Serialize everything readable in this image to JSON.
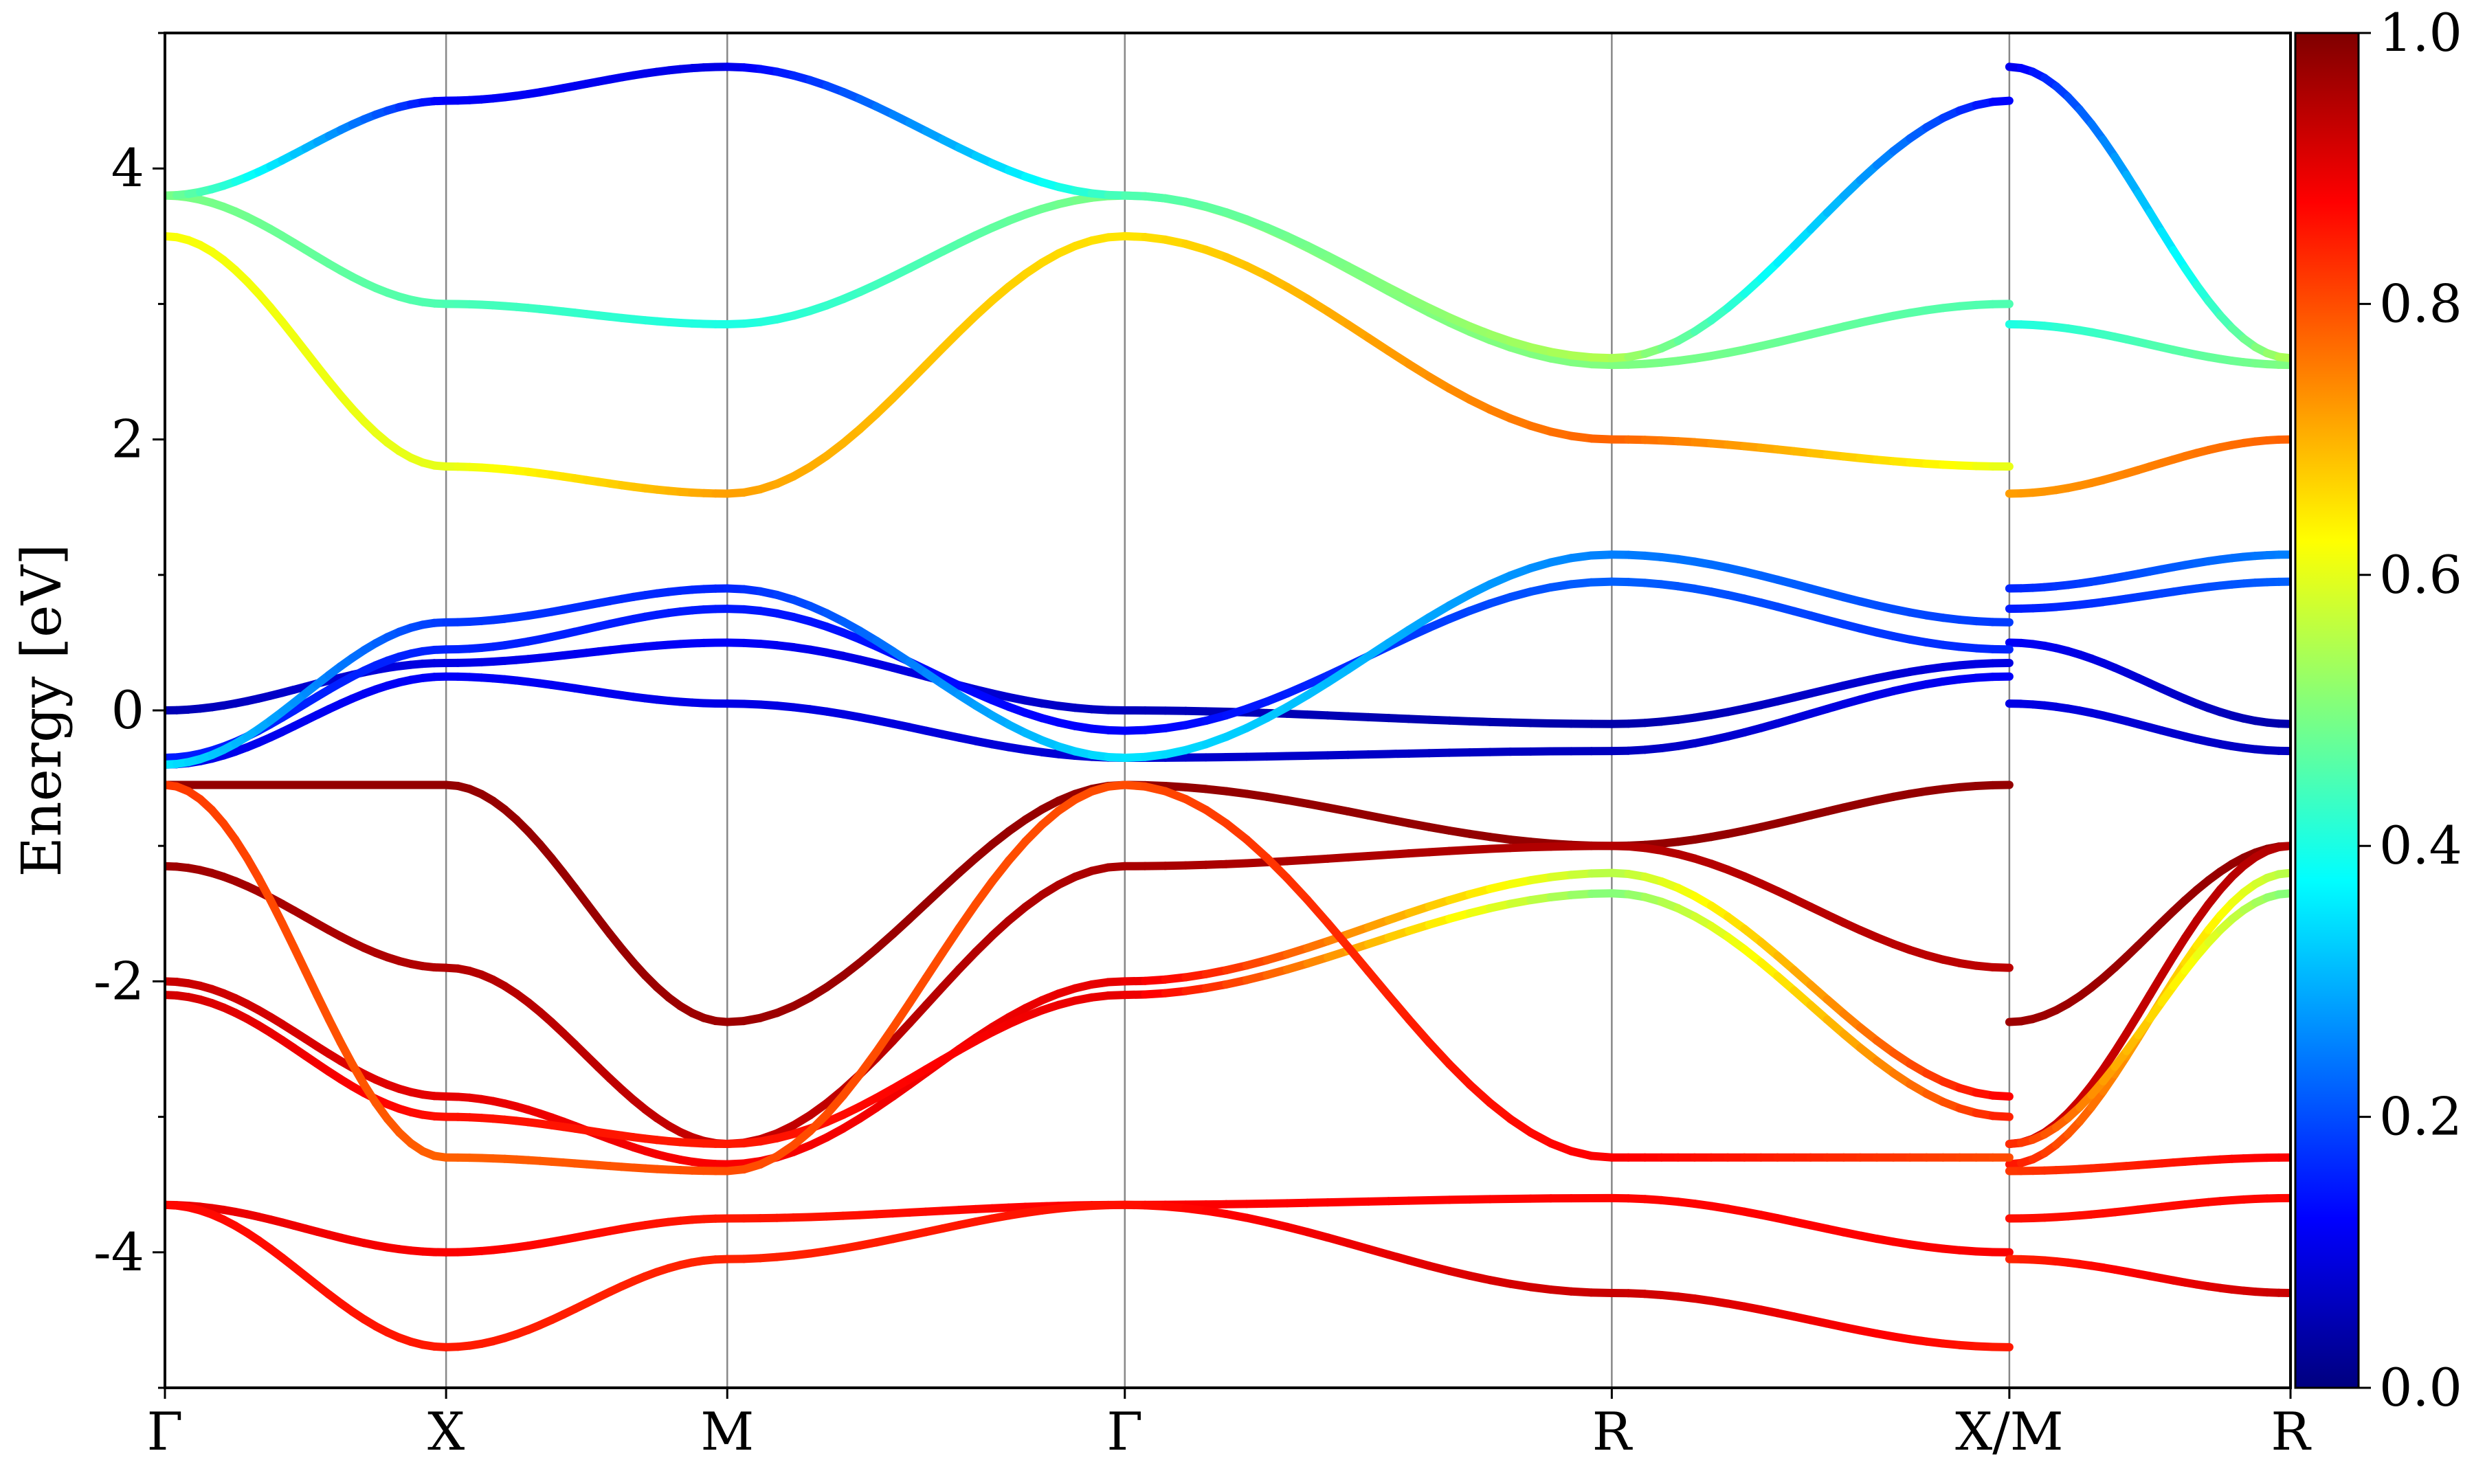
{
  "chart_data": {
    "type": "line",
    "title": "",
    "xlabel": "",
    "ylabel": "Energy [eV]",
    "ylim": [
      -5,
      5
    ],
    "y_ticks": [
      -4,
      -2,
      0,
      2,
      4
    ],
    "y_tick_labels": [
      "-4",
      "-2",
      "0",
      "2",
      "4"
    ],
    "k_points": [
      "Γ",
      "X",
      "M",
      "Γ",
      "R",
      "X/M",
      "R"
    ],
    "k_positions": [
      0,
      0.5,
      1.0,
      1.707,
      2.573,
      3.28,
      3.78
    ],
    "grid": false,
    "legend": "none",
    "colorbar": {
      "colormap": "jet",
      "range": [
        0.0,
        1.0
      ],
      "ticks": [
        0.0,
        0.2,
        0.4,
        0.6,
        0.8,
        1.0
      ],
      "tick_labels": [
        "0.0",
        "0.2",
        "0.4",
        "0.6",
        "0.8",
        "1.0"
      ],
      "colors": [
        "#00007f",
        "#0000ff",
        "#007fff",
        "#00ffff",
        "#7fff7f",
        "#ffff00",
        "#ff7f00",
        "#ff0000",
        "#7f0000"
      ]
    },
    "series": [
      {
        "k": [
          0,
          0.5,
          1.0,
          1.707,
          2.573,
          3.28,
          3.28,
          3.78
        ],
        "energy": [
          -0.55,
          -0.55,
          -2.3,
          -0.55,
          -1.0,
          -0.55,
          -2.3,
          -1.0
        ],
        "weight": [
          0.98,
          0.98,
          0.97,
          0.98,
          0.98,
          0.98,
          0.97,
          0.98
        ]
      },
      {
        "k": [
          0,
          0.5,
          1.0,
          1.707,
          2.573,
          3.28,
          3.28,
          3.78
        ],
        "energy": [
          -1.15,
          -1.9,
          -3.2,
          -1.15,
          -1.0,
          -1.9,
          -3.2,
          -1.0
        ],
        "weight": [
          0.97,
          0.95,
          0.93,
          0.96,
          0.95,
          0.94,
          0.92,
          0.95
        ]
      },
      {
        "k": [
          0,
          0.5,
          1.0,
          1.707,
          2.573,
          3.28,
          3.28,
          3.78
        ],
        "energy": [
          -2.0,
          -2.85,
          -3.35,
          -2.0,
          -1.2,
          -2.85,
          -3.35,
          -1.2
        ],
        "weight": [
          0.93,
          0.9,
          0.88,
          0.9,
          0.55,
          0.88,
          0.86,
          0.55
        ]
      },
      {
        "k": [
          0,
          0.5,
          1.0,
          1.707,
          2.573,
          3.28,
          3.28,
          3.78
        ],
        "energy": [
          -2.1,
          -3.0,
          -3.2,
          -2.1,
          -1.35,
          -3.0,
          -3.2,
          -1.35
        ],
        "weight": [
          0.92,
          0.86,
          0.85,
          0.9,
          0.5,
          0.85,
          0.84,
          0.5
        ]
      },
      {
        "k": [
          0,
          0.5,
          1.0,
          1.707,
          2.573,
          3.28,
          3.28,
          3.78
        ],
        "energy": [
          -0.55,
          -3.3,
          -3.4,
          -0.55,
          -3.3,
          -3.3,
          -3.4,
          -3.3
        ],
        "weight": [
          0.82,
          0.78,
          0.8,
          0.8,
          0.88,
          0.8,
          0.82,
          0.88
        ]
      },
      {
        "k": [
          0,
          0.5,
          1.0,
          1.707,
          2.573,
          3.28,
          3.28,
          3.78
        ],
        "energy": [
          -3.65,
          -4.0,
          -3.75,
          -3.65,
          -3.6,
          -4.0,
          -3.75,
          -3.6
        ],
        "weight": [
          0.9,
          0.88,
          0.85,
          0.88,
          0.87,
          0.88,
          0.86,
          0.87
        ]
      },
      {
        "k": [
          0,
          0.5,
          1.0,
          1.707,
          2.573,
          3.28,
          3.28,
          3.78
        ],
        "energy": [
          -3.65,
          -4.7,
          -4.05,
          -3.65,
          -4.3,
          -4.7,
          -4.05,
          -4.3
        ],
        "weight": [
          0.87,
          0.85,
          0.84,
          0.86,
          0.93,
          0.85,
          0.84,
          0.93
        ]
      },
      {
        "k": [
          0,
          0.5,
          1.0,
          1.707,
          2.573,
          3.28,
          3.28,
          3.78
        ],
        "energy": [
          -0.4,
          0.25,
          0.05,
          -0.35,
          -0.3,
          0.25,
          0.05,
          -0.3
        ],
        "weight": [
          0.1,
          0.12,
          0.1,
          0.08,
          0.06,
          0.12,
          0.1,
          0.06
        ]
      },
      {
        "k": [
          0,
          0.5,
          1.0,
          1.707,
          2.573,
          3.28,
          3.28,
          3.78
        ],
        "energy": [
          0.0,
          0.35,
          0.5,
          0.0,
          -0.1,
          0.35,
          0.5,
          -0.1
        ],
        "weight": [
          0.05,
          0.1,
          0.12,
          0.06,
          0.04,
          0.1,
          0.12,
          0.04
        ]
      },
      {
        "k": [
          0,
          0.5,
          1.0,
          1.707,
          2.573,
          3.28,
          3.28,
          3.78
        ],
        "energy": [
          -0.35,
          0.45,
          0.75,
          -0.15,
          0.95,
          0.45,
          0.75,
          0.95
        ],
        "weight": [
          0.15,
          0.16,
          0.15,
          0.12,
          0.22,
          0.16,
          0.15,
          0.22
        ]
      },
      {
        "k": [
          0,
          0.5,
          1.0,
          1.707,
          2.573,
          3.28,
          3.28,
          3.78
        ],
        "energy": [
          -0.4,
          0.65,
          0.9,
          -0.35,
          1.15,
          0.65,
          0.9,
          1.15
        ],
        "weight": [
          0.35,
          0.18,
          0.16,
          0.35,
          0.25,
          0.18,
          0.16,
          0.25
        ]
      },
      {
        "k": [
          0,
          0.5,
          1.0,
          1.707,
          2.573,
          3.28,
          3.28,
          3.78
        ],
        "energy": [
          3.5,
          1.8,
          1.6,
          3.5,
          2.0,
          1.8,
          1.6,
          2.0
        ],
        "weight": [
          0.62,
          0.6,
          0.72,
          0.65,
          0.78,
          0.6,
          0.72,
          0.78
        ]
      },
      {
        "k": [
          0,
          0.5,
          1.0,
          1.707,
          2.573,
          3.28,
          3.28,
          3.78
        ],
        "energy": [
          3.8,
          3.0,
          2.85,
          3.8,
          2.55,
          3.0,
          2.85,
          2.55
        ],
        "weight": [
          0.5,
          0.45,
          0.4,
          0.5,
          0.5,
          0.45,
          0.4,
          0.5
        ]
      },
      {
        "k": [
          0,
          0.5,
          1.0,
          1.707,
          2.573,
          3.28,
          3.28,
          3.78
        ],
        "energy": [
          3.8,
          4.5,
          4.75,
          3.8,
          2.6,
          4.5,
          4.75,
          2.6
        ],
        "weight": [
          0.5,
          0.12,
          0.1,
          0.45,
          0.55,
          0.12,
          0.1,
          0.55
        ]
      }
    ]
  }
}
